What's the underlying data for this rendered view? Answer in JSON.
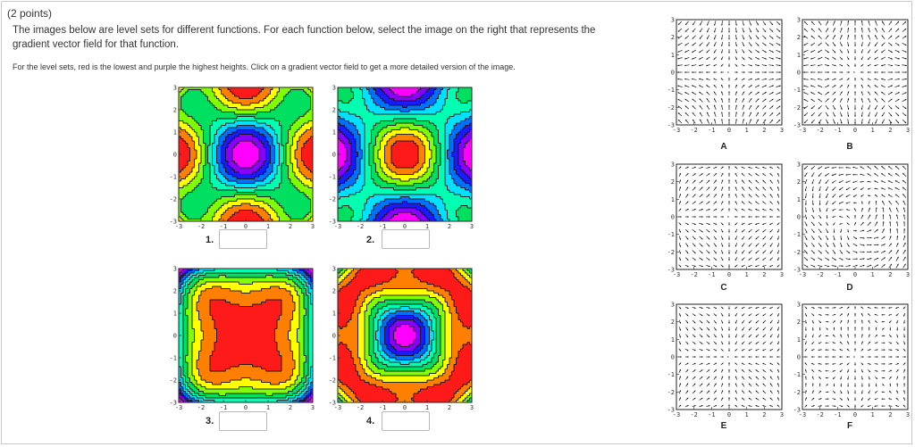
{
  "points": "(2 points)",
  "prompt": "The images below are level sets for different functions. For each function below, select the image on the right that represents the gradient vector field for that function.",
  "note": "For the level sets, red is the lowest and purple the highest heights. Click on a gradient vector field to get a more detailed version of the image.",
  "axis_ticks": [
    "-3",
    "-2",
    "-1",
    "0",
    "1",
    "2",
    "3"
  ],
  "level_sets": [
    {
      "number": "1.",
      "answer": ""
    },
    {
      "number": "2.",
      "answer": ""
    },
    {
      "number": "3.",
      "answer": ""
    },
    {
      "number": "4.",
      "answer": ""
    }
  ],
  "vector_fields": [
    {
      "letter": "A"
    },
    {
      "letter": "B"
    },
    {
      "letter": "C"
    },
    {
      "letter": "D"
    },
    {
      "letter": "E"
    },
    {
      "letter": "F"
    }
  ]
}
